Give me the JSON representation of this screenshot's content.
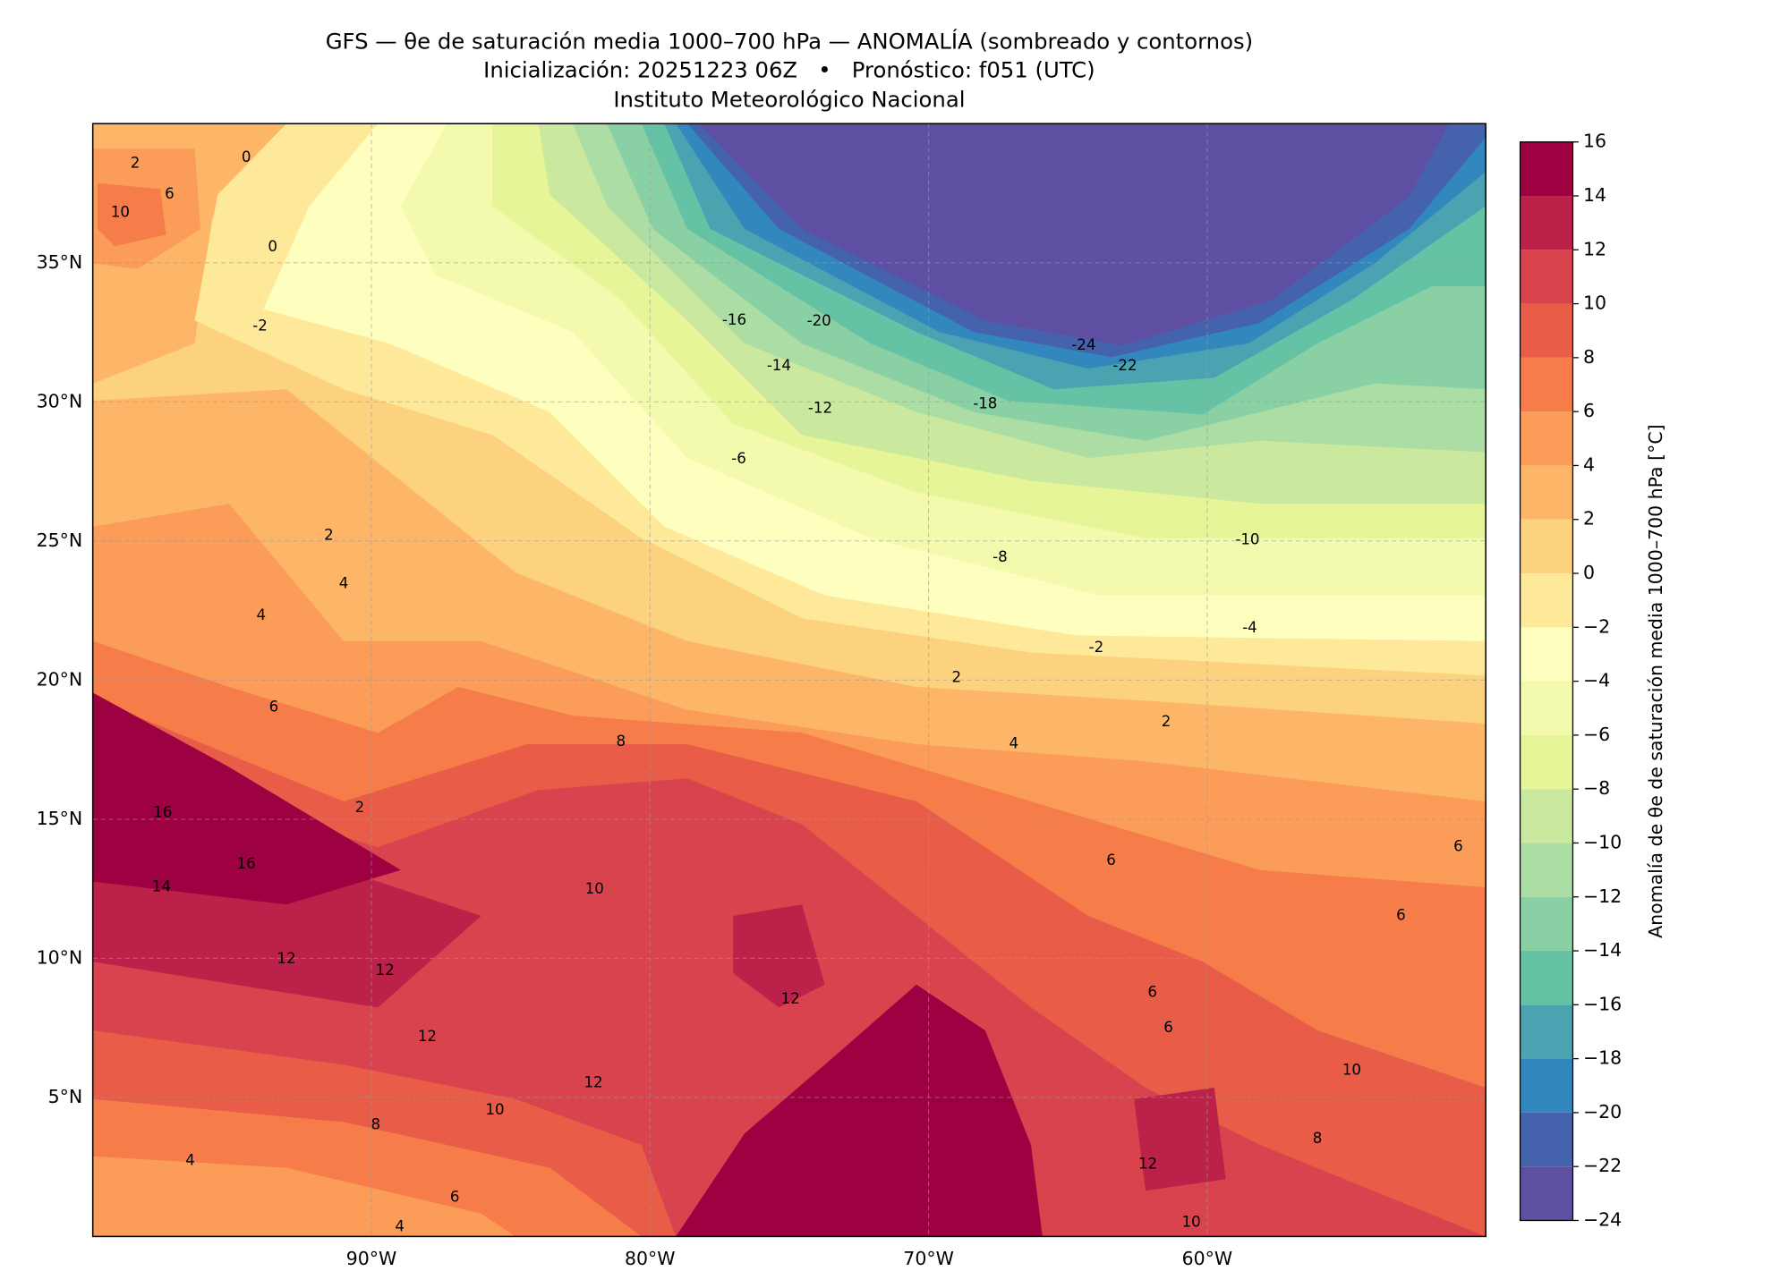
{
  "chart_data": {
    "type": "contour",
    "title": "GFS — θe de saturación media 1000–700 hPa — ANOMALÍA (sombreado y contornos)",
    "subtitle": "Inicialización: 20251223 06Z   •   Pronóstico: f051 (UTC)",
    "source": "Instituto Meteorológico Nacional",
    "xlim": [
      -100,
      -50
    ],
    "ylim": [
      0,
      40
    ],
    "xticks": [
      {
        "value": -90,
        "label": "90°W"
      },
      {
        "value": -80,
        "label": "80°W"
      },
      {
        "value": -70,
        "label": "70°W"
      },
      {
        "value": -60,
        "label": "60°W"
      }
    ],
    "yticks": [
      {
        "value": 5,
        "label": "5°N"
      },
      {
        "value": 10,
        "label": "10°N"
      },
      {
        "value": 15,
        "label": "15°N"
      },
      {
        "value": 20,
        "label": "20°N"
      },
      {
        "value": 25,
        "label": "25°N"
      },
      {
        "value": 30,
        "label": "30°N"
      },
      {
        "value": 35,
        "label": "35°N"
      }
    ],
    "grid": true,
    "colorbar": {
      "label": "Anomalía de θe de saturación media 1000–700 hPa [°C]",
      "lim": [
        -24,
        16
      ],
      "ticks": [
        {
          "value": -24,
          "label": "−24"
        },
        {
          "value": -22,
          "label": "−22"
        },
        {
          "value": -20,
          "label": "−20"
        },
        {
          "value": -18,
          "label": "−18"
        },
        {
          "value": -16,
          "label": "−16"
        },
        {
          "value": -14,
          "label": "−14"
        },
        {
          "value": -12,
          "label": "−12"
        },
        {
          "value": -10,
          "label": "−10"
        },
        {
          "value": -8,
          "label": "−8"
        },
        {
          "value": -6,
          "label": "−6"
        },
        {
          "value": -4,
          "label": "−4"
        },
        {
          "value": -2,
          "label": "−2"
        },
        0,
        2,
        4,
        6,
        8,
        10,
        12,
        14,
        16
      ],
      "colors": [
        "#5e4fa2",
        "#4563ad",
        "#3288bd",
        "#4ba3b2",
        "#66c2a5",
        "#89d0a4",
        "#abdda4",
        "#cbe99e",
        "#e6f598",
        "#f3f9ad",
        "#fefebe",
        "#fee99b",
        "#fdd27f",
        "#fdb667",
        "#fb9c59",
        "#f67d4a",
        "#e85c48",
        "#d8434d",
        "#bc2249",
        "#9e0142"
      ]
    },
    "contour_labels": [
      0,
      2,
      10,
      6,
      0,
      -2,
      -16,
      -20,
      -24,
      -22,
      -14,
      -12,
      -18,
      -6,
      -8,
      -10,
      -4,
      -2,
      2,
      2,
      4,
      2,
      4,
      4,
      6,
      8,
      2,
      16,
      16,
      14,
      12,
      12,
      12,
      12,
      10,
      8,
      4,
      6,
      4,
      6,
      6,
      6,
      6,
      6,
      10,
      8,
      12,
      10,
      12,
      10
    ]
  }
}
